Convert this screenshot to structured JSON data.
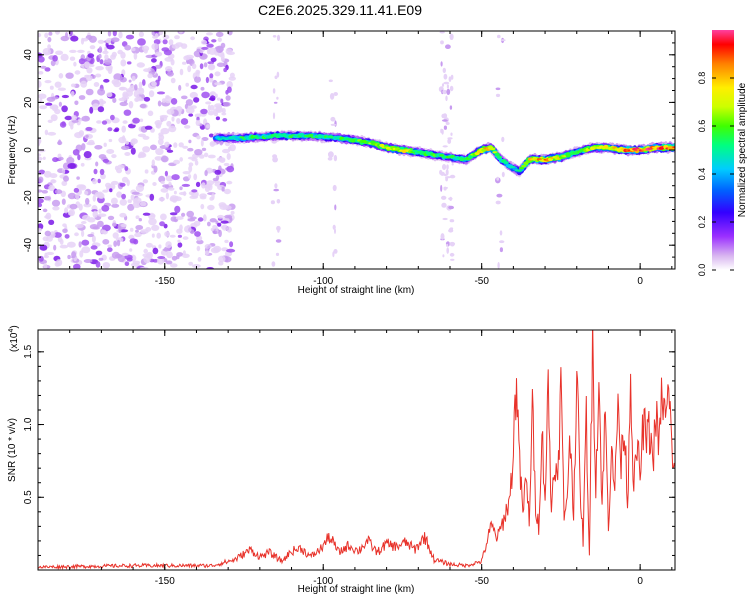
{
  "title": "C2E6.2025.329.11.41.E09",
  "chart_data": [
    {
      "type": "heatmap",
      "name": "spectrogram",
      "xlabel": "Height of straight line (km)",
      "ylabel": "Frequency (Hz)",
      "xlim": [
        -190,
        11
      ],
      "ylim": [
        -50,
        50
      ],
      "xticks": [
        -150,
        -100,
        -50,
        0
      ],
      "xtick_labels": [
        "-150",
        "-100",
        "-50",
        "0"
      ],
      "yticks": [
        -40,
        -20,
        0,
        20,
        40
      ],
      "ytick_labels": [
        "-40",
        "-20",
        "0",
        "20",
        "40"
      ],
      "noise_region_km": [
        -190,
        -131
      ],
      "ridge": {
        "x": [
          -134,
          -125,
          -115,
          -105,
          -95,
          -85,
          -80,
          -75,
          -70,
          -65,
          -60,
          -55,
          -50,
          -47,
          -44,
          -41,
          -38,
          -35,
          -30,
          -25,
          -20,
          -15,
          -10,
          -5,
          0,
          5,
          11
        ],
        "freq": [
          5,
          5,
          6,
          6,
          5,
          3,
          1,
          0,
          -1,
          -2,
          -3,
          -4,
          0,
          1,
          -4,
          -7,
          -9,
          -4,
          -4,
          -3,
          -1,
          1,
          1,
          0,
          0,
          1,
          1
        ],
        "amplitude": [
          0.4,
          0.5,
          0.5,
          0.5,
          0.5,
          0.6,
          0.65,
          0.7,
          0.55,
          0.55,
          0.5,
          0.5,
          0.75,
          0.7,
          0.5,
          0.45,
          0.45,
          0.7,
          0.8,
          0.7,
          0.55,
          0.65,
          0.7,
          0.85,
          0.9,
          0.85,
          0.9
        ]
      },
      "colorbar": {
        "label": "Normalized spectral amplitude",
        "range": [
          0,
          1
        ],
        "ticks": [
          0.0,
          0.2,
          0.4,
          0.6,
          0.8
        ],
        "tick_labels": [
          "0.0",
          "0.2",
          "0.4",
          "0.6",
          "0.8"
        ],
        "colors": [
          "#ffffff",
          "#d8b4f0",
          "#9b30ff",
          "#3300ff",
          "#0060ff",
          "#00ccff",
          "#00ff80",
          "#40ff00",
          "#ccff00",
          "#ffee00",
          "#ff8000",
          "#ff0000",
          "#ff40a0"
        ]
      }
    },
    {
      "type": "line",
      "name": "snr",
      "xlabel": "Height of straight line (km)",
      "ylabel": "SNR (10 * v/v)",
      "multiplier_label": "(x10",
      "multiplier_exp": "4",
      "multiplier_close": ")",
      "xlim": [
        -190,
        11
      ],
      "ylim": [
        0,
        1.65
      ],
      "xticks": [
        -150,
        -100,
        -50,
        0
      ],
      "xtick_labels": [
        "-150",
        "-100",
        "-50",
        "0"
      ],
      "yticks": [
        0.5,
        1.0,
        1.5
      ],
      "ytick_labels": [
        "0.5",
        "1.0",
        "1.5"
      ],
      "color": "#e8322a",
      "series": [
        {
          "name": "SNR",
          "x": [
            -190,
            -160,
            -135,
            -128,
            -123,
            -120,
            -117,
            -113,
            -110,
            -107,
            -104,
            -101,
            -98,
            -95,
            -92,
            -89,
            -86,
            -83,
            -80,
            -77,
            -74,
            -71,
            -68,
            -65,
            -60,
            -55,
            -50,
            -47,
            -45,
            -43,
            -41,
            -40,
            -39,
            -38,
            -37,
            -36,
            -35,
            -34,
            -33,
            -32,
            -31,
            -30,
            -29,
            -28,
            -27,
            -26,
            -25,
            -24,
            -23,
            -22,
            -21,
            -20,
            -19,
            -18,
            -17,
            -16,
            -15,
            -14,
            -13,
            -12,
            -11,
            -10,
            -9,
            -8,
            -7,
            -6,
            -5,
            -4,
            -3,
            -2,
            -1,
            0,
            1,
            2,
            3,
            4,
            5,
            6,
            7,
            8,
            9,
            10,
            11
          ],
          "y": [
            0.02,
            0.03,
            0.03,
            0.07,
            0.14,
            0.09,
            0.12,
            0.06,
            0.13,
            0.15,
            0.09,
            0.14,
            0.23,
            0.12,
            0.17,
            0.13,
            0.2,
            0.12,
            0.18,
            0.16,
            0.19,
            0.14,
            0.23,
            0.07,
            0.04,
            0.03,
            0.06,
            0.3,
            0.22,
            0.35,
            0.5,
            0.85,
            1.35,
            0.7,
            0.4,
            0.62,
            0.35,
            1.1,
            0.45,
            0.3,
            0.95,
            0.5,
            1.25,
            0.4,
            0.8,
            0.55,
            1.3,
            0.35,
            0.55,
            0.9,
            0.4,
            1.37,
            0.6,
            0.2,
            1.05,
            0.1,
            1.62,
            0.6,
            1.3,
            0.45,
            1.1,
            0.25,
            0.95,
            0.5,
            1.2,
            0.7,
            1.05,
            0.45,
            1.35,
            0.55,
            0.85,
            0.65,
            1.0,
            0.9,
            0.95,
            0.75,
            1.05,
            0.85,
            1.25,
            1.0,
            1.22,
            0.85,
            0.7
          ]
        }
      ]
    }
  ]
}
